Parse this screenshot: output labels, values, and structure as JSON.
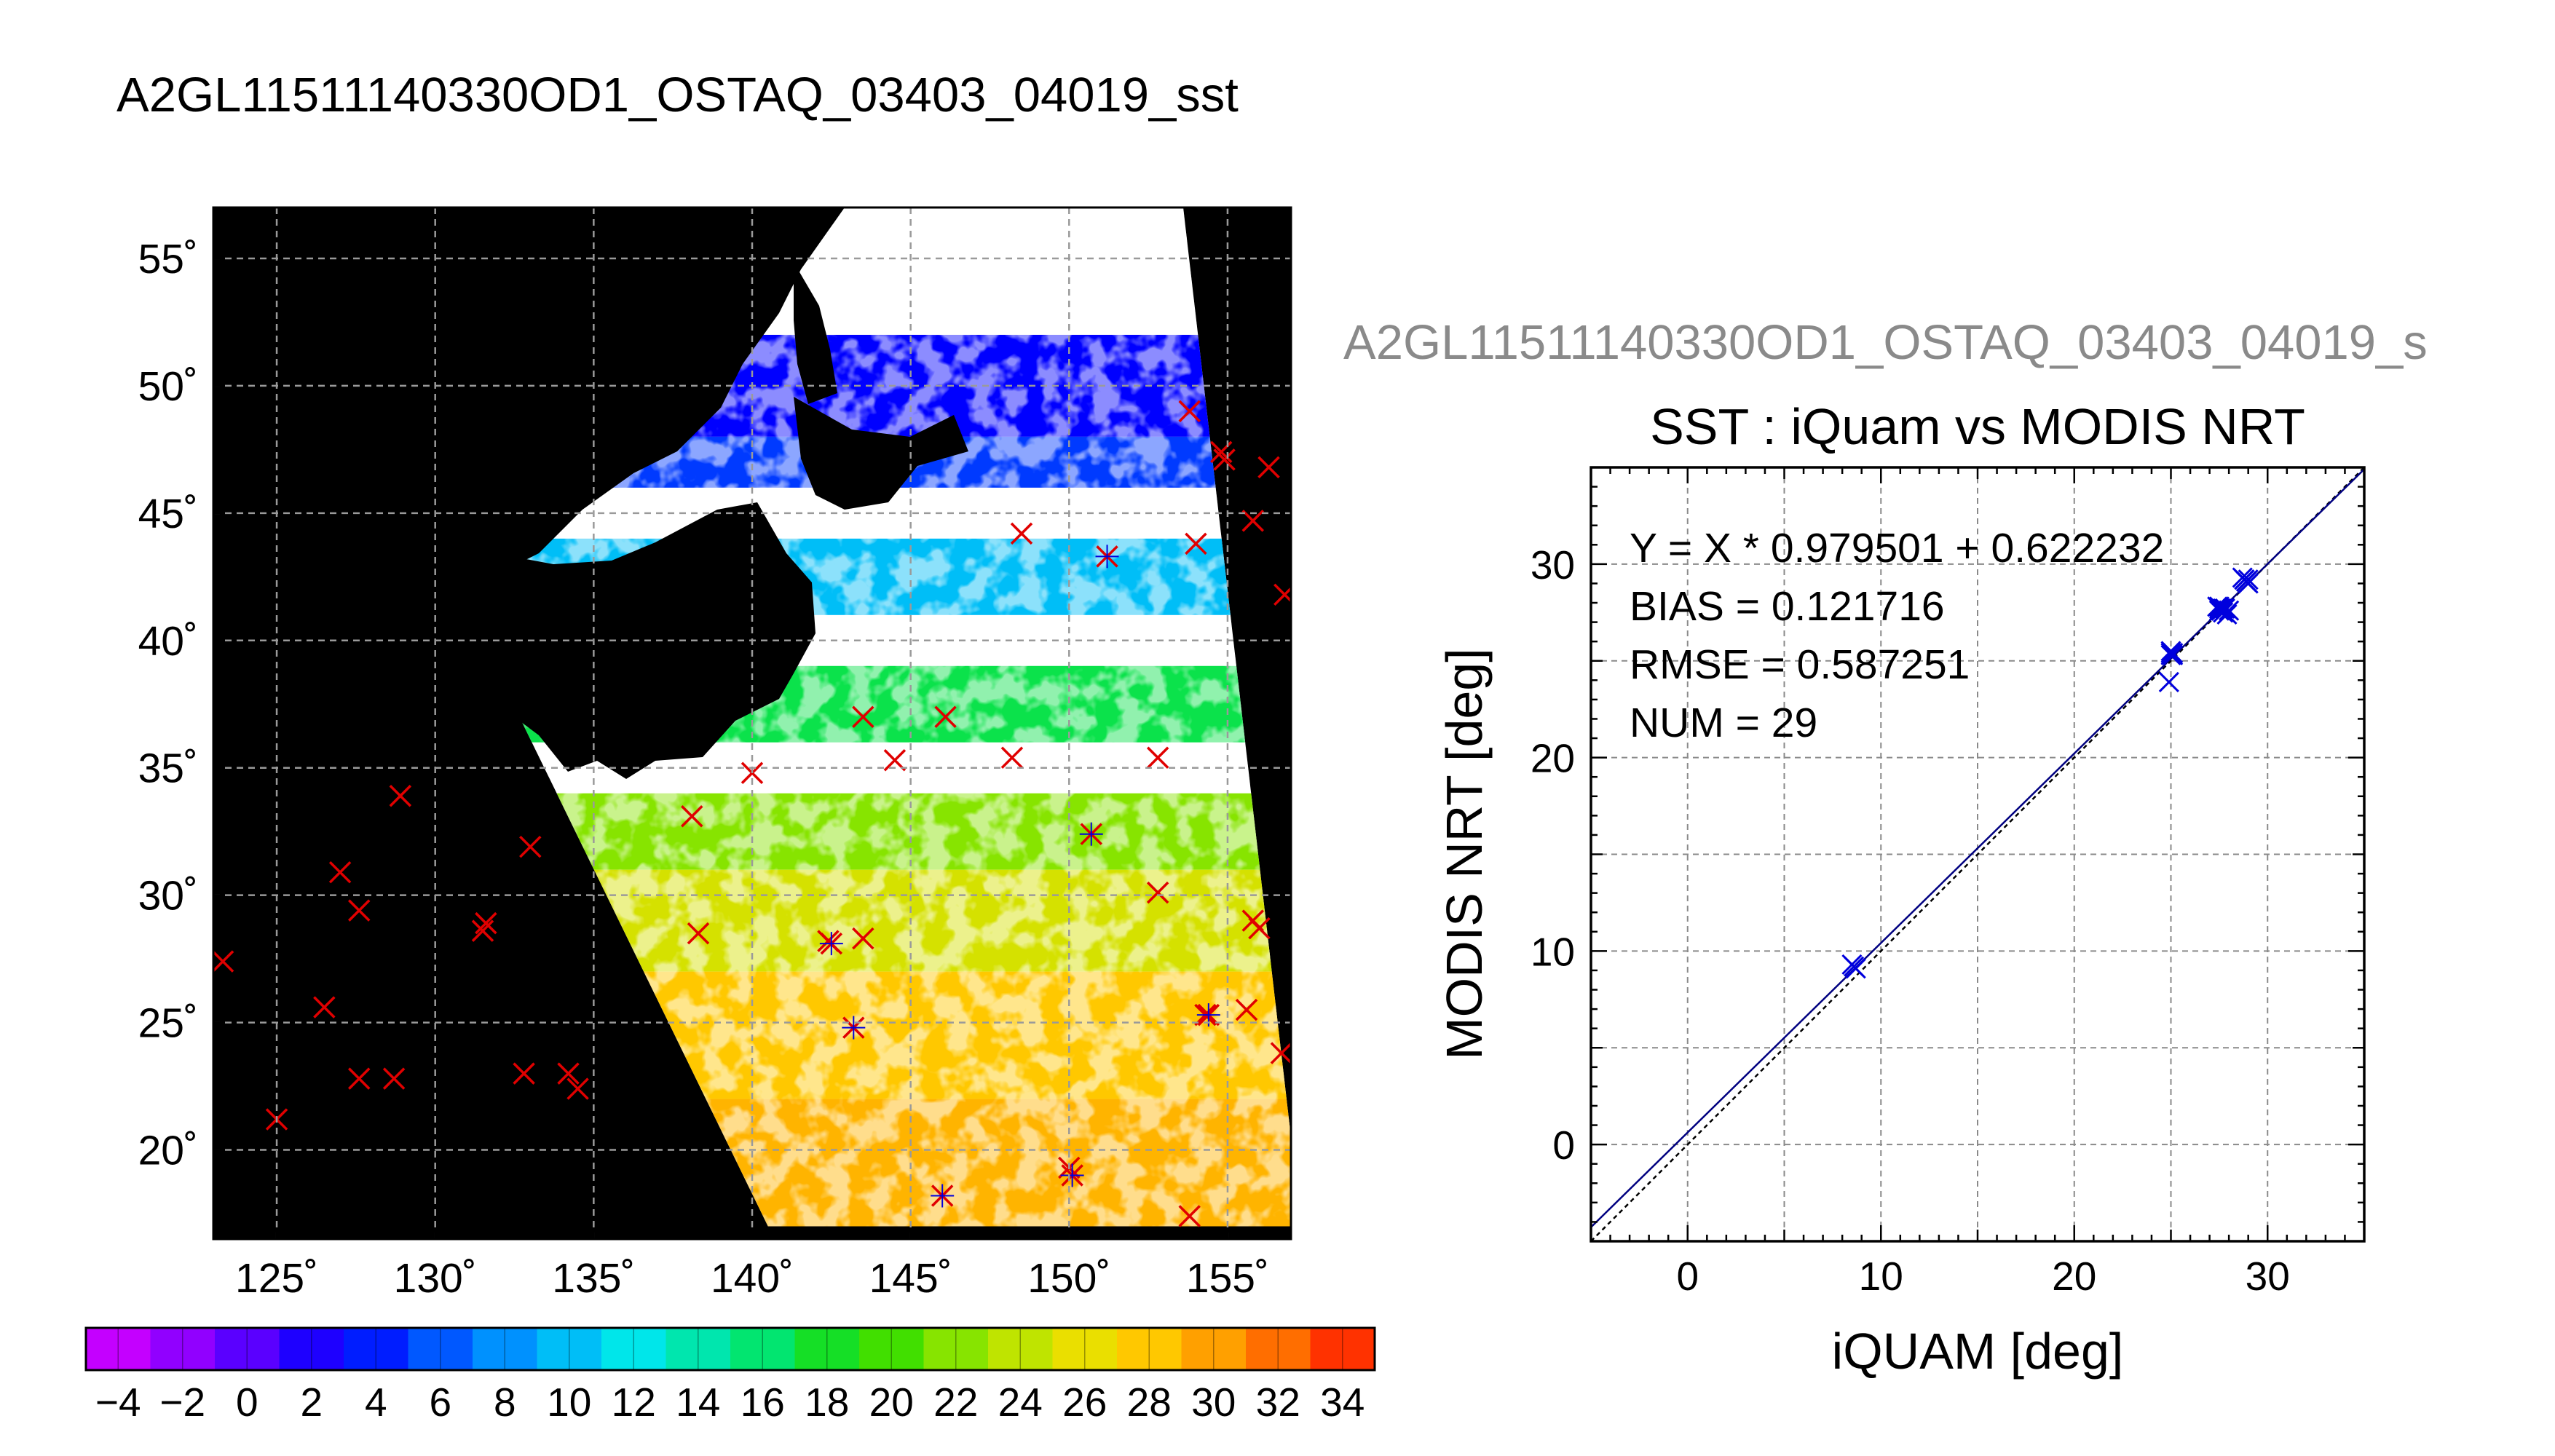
{
  "page_title": "A2GL11511140330OD1_OSTAQ_03403_04019_sst",
  "right_title": "A2GL11511140330OD1_OSTAQ_03403_04019_s",
  "colors": {
    "land": "#000000",
    "cloud": "#ffffff",
    "buoy_marker": "#e00000",
    "match_marker": "#0000dd",
    "grid": "#9a9a9a",
    "fit_line": "#000080",
    "one_to_one_line": "#000000"
  },
  "chart_data": [
    {
      "type": "heatmap",
      "title": "A2GL11511140330OD1_OSTAQ_03403_04019_sst",
      "xlabel": "",
      "ylabel": "",
      "xlim": [
        123,
        157
      ],
      "ylim": [
        16.5,
        57
      ],
      "x_ticks": [
        125,
        130,
        135,
        140,
        145,
        150,
        155
      ],
      "x_tick_labels": [
        "125˚",
        "130˚",
        "135˚",
        "140˚",
        "145˚",
        "150˚",
        "155˚"
      ],
      "y_ticks": [
        20,
        25,
        30,
        35,
        40,
        45,
        50,
        55
      ],
      "y_tick_labels": [
        "20˚",
        "25˚",
        "30˚",
        "35˚",
        "40˚",
        "45˚",
        "50˚",
        "55˚"
      ],
      "grid": true,
      "colorbar": {
        "min": -5,
        "max": 35,
        "ticks": [
          -4,
          -2,
          0,
          2,
          4,
          6,
          8,
          10,
          12,
          14,
          16,
          18,
          20,
          22,
          24,
          26,
          28,
          30,
          32,
          34
        ],
        "tick_labels": [
          "−4",
          "−2",
          "0",
          "2",
          "4",
          "6",
          "8",
          "10",
          "12",
          "14",
          "16",
          "18",
          "20",
          "22",
          "24",
          "26",
          "28",
          "30",
          "32",
          "34"
        ]
      },
      "swath_lonlat": [
        [
          140.5,
          17
        ],
        [
          157,
          17
        ],
        [
          157,
          20.5
        ],
        [
          153.6,
          57
        ],
        [
          130.5,
          57
        ],
        [
          130.5,
          42.5
        ]
      ],
      "sst_bands": [
        {
          "lat_min": 48,
          "lat_max": 52,
          "sst": 3
        },
        {
          "lat_min": 46,
          "lat_max": 48,
          "sst": 5
        },
        {
          "lat_min": 41,
          "lat_max": 44,
          "sst": 10
        },
        {
          "lat_min": 36,
          "lat_max": 39,
          "sst": 17
        },
        {
          "lat_min": 31,
          "lat_max": 34,
          "sst": 22
        },
        {
          "lat_min": 27,
          "lat_max": 31,
          "sst": 25
        },
        {
          "lat_min": 22,
          "lat_max": 27,
          "sst": 28
        },
        {
          "lat_min": 17,
          "lat_max": 22,
          "sst": 29
        }
      ],
      "buoy_points": [
        [
          123.3,
          27.4
        ],
        [
          125,
          21.2
        ],
        [
          126.5,
          25.6
        ],
        [
          127,
          30.9
        ],
        [
          127.6,
          22.8
        ],
        [
          127.6,
          29.4
        ],
        [
          128.7,
          22.8
        ],
        [
          128.9,
          33.9
        ],
        [
          131.5,
          28.6
        ],
        [
          131.6,
          28.9
        ],
        [
          132.8,
          23
        ],
        [
          133,
          31.9
        ],
        [
          134.2,
          23
        ],
        [
          134.5,
          22.4
        ],
        [
          138.1,
          33.1
        ],
        [
          138.3,
          28.5
        ],
        [
          140,
          34.8
        ],
        [
          142.4,
          28.2
        ],
        [
          143.5,
          28.3
        ],
        [
          143.5,
          37
        ],
        [
          144.5,
          35.3
        ],
        [
          146.1,
          37
        ],
        [
          148.2,
          35.4
        ],
        [
          148.5,
          44.2
        ],
        [
          150,
          19.3
        ],
        [
          152.8,
          30.1
        ],
        [
          152.8,
          35.4
        ],
        [
          153.8,
          17.4
        ],
        [
          153.8,
          49
        ],
        [
          154,
          43.8
        ],
        [
          154.3,
          25.3
        ],
        [
          154.8,
          47.4
        ],
        [
          154.9,
          47.1
        ],
        [
          155.8,
          29
        ],
        [
          155.8,
          44.7
        ],
        [
          156,
          28.7
        ],
        [
          156.3,
          46.8
        ],
        [
          156.7,
          23.8
        ],
        [
          156.8,
          41.8
        ],
        [
          155.6,
          25.5
        ]
      ],
      "match_points": [
        [
          151.2,
          43.3
        ],
        [
          150.7,
          32.4
        ],
        [
          142.5,
          28.1
        ],
        [
          143.2,
          24.8
        ],
        [
          146,
          18.2
        ],
        [
          150.1,
          19
        ],
        [
          154.4,
          25.3
        ]
      ]
    },
    {
      "type": "scatter",
      "title": "SST : iQuam vs MODIS NRT",
      "xlabel": "iQUAM [deg]",
      "ylabel": "MODIS NRT [deg]",
      "xlim": [
        -5,
        35
      ],
      "ylim": [
        -5,
        35
      ],
      "x_ticks": [
        0,
        10,
        20,
        30
      ],
      "y_ticks": [
        0,
        10,
        20,
        30
      ],
      "grid": true,
      "series": [
        {
          "x": [
            8.6,
            8.7,
            8.5,
            25.0,
            25.1,
            24.9,
            25.0,
            27.5,
            27.6,
            27.4,
            27.7,
            27.8,
            27.5,
            27.9,
            28.0,
            28.8,
            28.9,
            28.7,
            29.0,
            28.8,
            28.9,
            27.6,
            27.5,
            25.0,
            25.1,
            27.6,
            27.7,
            28.9,
            29.0
          ],
          "y": [
            9.2,
            9.1,
            9.3,
            25.4,
            25.3,
            23.9,
            25.5,
            27.7,
            27.6,
            27.8,
            27.5,
            27.7,
            27.6,
            27.4,
            27.6,
            29.2,
            29.1,
            29.3,
            29.0,
            29.2,
            29.1,
            27.7,
            27.8,
            25.3,
            25.4,
            27.6,
            27.7,
            29.1,
            29.2
          ]
        }
      ],
      "fit": {
        "slope": 0.979501,
        "intercept": 0.622232
      },
      "stats_lines": [
        "Y = X * 0.979501 + 0.622232",
        "BIAS = 0.121716",
        "RMSE = 0.587251",
        "NUM = 29"
      ]
    }
  ]
}
